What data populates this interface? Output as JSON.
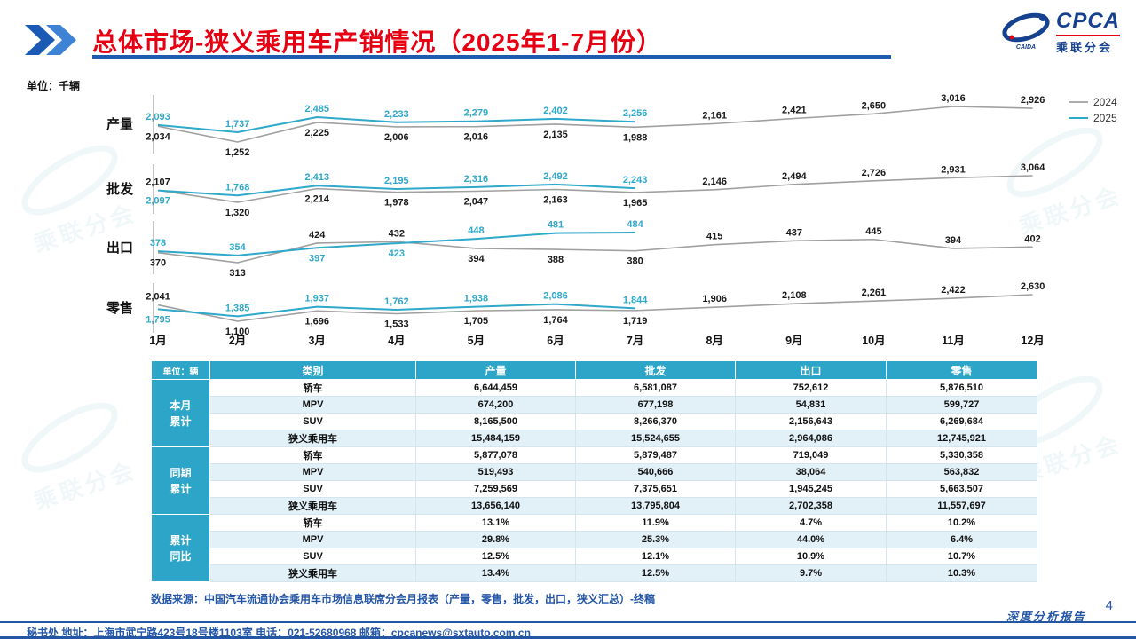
{
  "meta": {
    "title": "总体市场-狭义乘用车产销情况（2025年1-7月份）",
    "unit_label": "单位：千辆",
    "watermark_text": "乘联分会",
    "logo_brand": "CPCA",
    "logo_sub": "乘联分会",
    "logo_caida": "CAIDA",
    "page_number": "4",
    "report_tag": "深度分析报告",
    "source_note": "数据来源：中国汽车流通协会乘用车市场信息联席分会月报表（产量，零售，批发，出口，狭义汇总）-终稿",
    "footer_text": "秘书处   地址：上海市武宁路423号18号楼1103室  电话：021-52680968   邮箱：cpcanews@sxtauto.com.cn"
  },
  "colors": {
    "title_red": "#e60012",
    "blue": "#2456a6",
    "teal_2025": "#2fa8ca",
    "line_2024": "#a0a0a0",
    "label_2024": "#1a1a1a",
    "table_header_bg": "#2da5c8",
    "row_alt_bg": "#e2f0f8"
  },
  "chart_data": {
    "type": "line",
    "x": [
      "1月",
      "2月",
      "3月",
      "4月",
      "5月",
      "6月",
      "7月",
      "8月",
      "9月",
      "10月",
      "11月",
      "12月"
    ],
    "legend": [
      "2024",
      "2025"
    ],
    "legend_position": "right",
    "grid": false,
    "bands": [
      {
        "label": "产量",
        "series": [
          {
            "name": "2024",
            "values": [
              2034,
              1252,
              2225,
              2006,
              2016,
              2135,
              1988,
              2161,
              2421,
              2650,
              3016,
              2926
            ]
          },
          {
            "name": "2025",
            "values": [
              2093,
              1737,
              2485,
              2233,
              2279,
              2402,
              2256
            ]
          }
        ]
      },
      {
        "label": "批发",
        "series": [
          {
            "name": "2024",
            "values": [
              2107,
              1320,
              2214,
              1978,
              2047,
              2163,
              1965,
              2146,
              2494,
              2726,
              2931,
              3064
            ]
          },
          {
            "name": "2025",
            "values": [
              2097,
              1768,
              2413,
              2195,
              2316,
              2492,
              2243
            ]
          }
        ]
      },
      {
        "label": "出口",
        "series": [
          {
            "name": "2024",
            "values": [
              370,
              313,
              424,
              432,
              394,
              388,
              380,
              415,
              437,
              445,
              394,
              402
            ]
          },
          {
            "name": "2025",
            "values": [
              378,
              354,
              397,
              423,
              448,
              481,
              484
            ]
          }
        ]
      },
      {
        "label": "零售",
        "series": [
          {
            "name": "2024",
            "values": [
              2041,
              1100,
              1696,
              1533,
              1705,
              1764,
              1719,
              1906,
              2108,
              2261,
              2422,
              2630
            ]
          },
          {
            "name": "2025",
            "values": [
              1795,
              1385,
              1937,
              1762,
              1938,
              2086,
              1844
            ]
          }
        ]
      }
    ]
  },
  "table": {
    "unit": "单位：辆",
    "columns": [
      "类别",
      "产量",
      "批发",
      "出口",
      "零售"
    ],
    "groups": [
      {
        "label": "本月累计",
        "rows": [
          [
            "轿车",
            "6,644,459",
            "6,581,087",
            "752,612",
            "5,876,510"
          ],
          [
            "MPV",
            "674,200",
            "677,198",
            "54,831",
            "599,727"
          ],
          [
            "SUV",
            "8,165,500",
            "8,266,370",
            "2,156,643",
            "6,269,684"
          ],
          [
            "狭义乘用车",
            "15,484,159",
            "15,524,655",
            "2,964,086",
            "12,745,921"
          ]
        ]
      },
      {
        "label": "同期累计",
        "rows": [
          [
            "轿车",
            "5,877,078",
            "5,879,487",
            "719,049",
            "5,330,358"
          ],
          [
            "MPV",
            "519,493",
            "540,666",
            "38,064",
            "563,832"
          ],
          [
            "SUV",
            "7,259,569",
            "7,375,651",
            "1,945,245",
            "5,663,507"
          ],
          [
            "狭义乘用车",
            "13,656,140",
            "13,795,804",
            "2,702,358",
            "11,557,697"
          ]
        ]
      },
      {
        "label": "累计同比",
        "rows": [
          [
            "轿车",
            "13.1%",
            "11.9%",
            "4.7%",
            "10.2%"
          ],
          [
            "MPV",
            "29.8%",
            "25.3%",
            "44.0%",
            "6.4%"
          ],
          [
            "SUV",
            "12.5%",
            "12.1%",
            "10.9%",
            "10.7%"
          ],
          [
            "狭义乘用车",
            "13.4%",
            "12.5%",
            "9.7%",
            "10.3%"
          ]
        ]
      }
    ]
  }
}
